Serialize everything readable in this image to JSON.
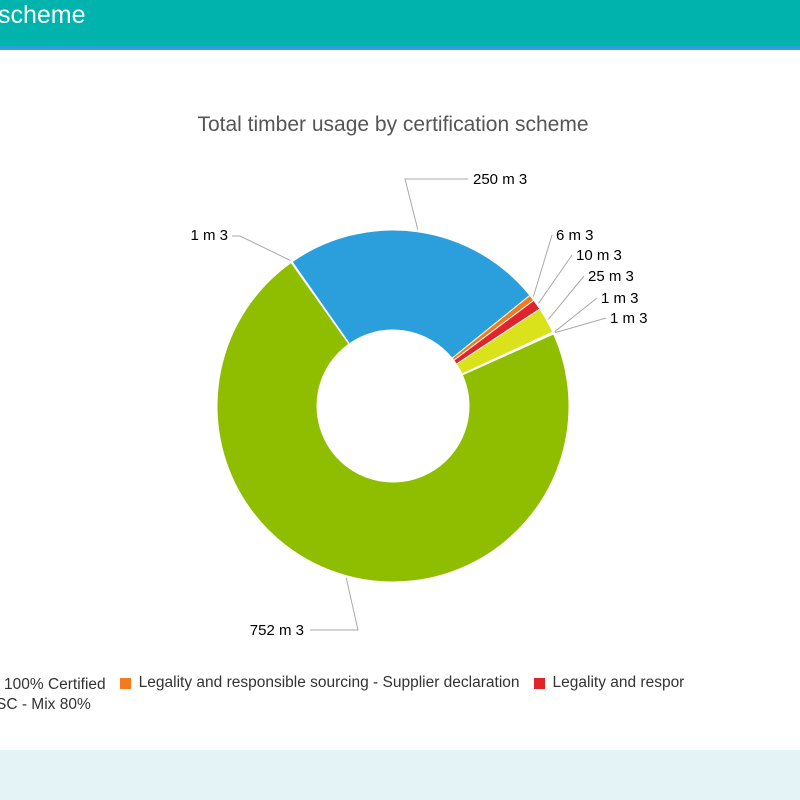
{
  "header": {
    "title": "scheme"
  },
  "chart_data": {
    "type": "pie",
    "title": "Total timber usage by certification scheme",
    "unit": "m 3",
    "slices": [
      {
        "value": 250,
        "label": "250 m 3",
        "color": "#2a9fdc"
      },
      {
        "value": 6,
        "label": "6 m 3",
        "color": "#f47a20"
      },
      {
        "value": 10,
        "label": "10 m 3",
        "color": "#e1232b"
      },
      {
        "value": 25,
        "label": "25 m 3",
        "color": "#d9e21a"
      },
      {
        "value": 1,
        "label": "1 m 3",
        "color": "#b9b9b9"
      },
      {
        "value": 1,
        "label": "1 m 3",
        "color": "#8ca8c0"
      },
      {
        "value": 752,
        "label": "752 m 3",
        "color": "#8fbe00"
      },
      {
        "value": 1,
        "label": "1 m 3",
        "color": "#1b9ad6"
      }
    ],
    "legend": {
      "placement": "bottom",
      "rows": [
        [
          {
            "label": "100% Certified",
            "color": "#8fbe00",
            "swatch": false
          },
          {
            "label": "Legality and responsible sourcing - Supplier declaration",
            "color": "#f47a20",
            "swatch": true
          },
          {
            "label": "Legality and respor",
            "color": "#e1232b",
            "swatch": true
          }
        ],
        [
          {
            "label": "SC - Mix 80%",
            "color": "#d9e21a",
            "swatch": false
          }
        ]
      ]
    }
  }
}
